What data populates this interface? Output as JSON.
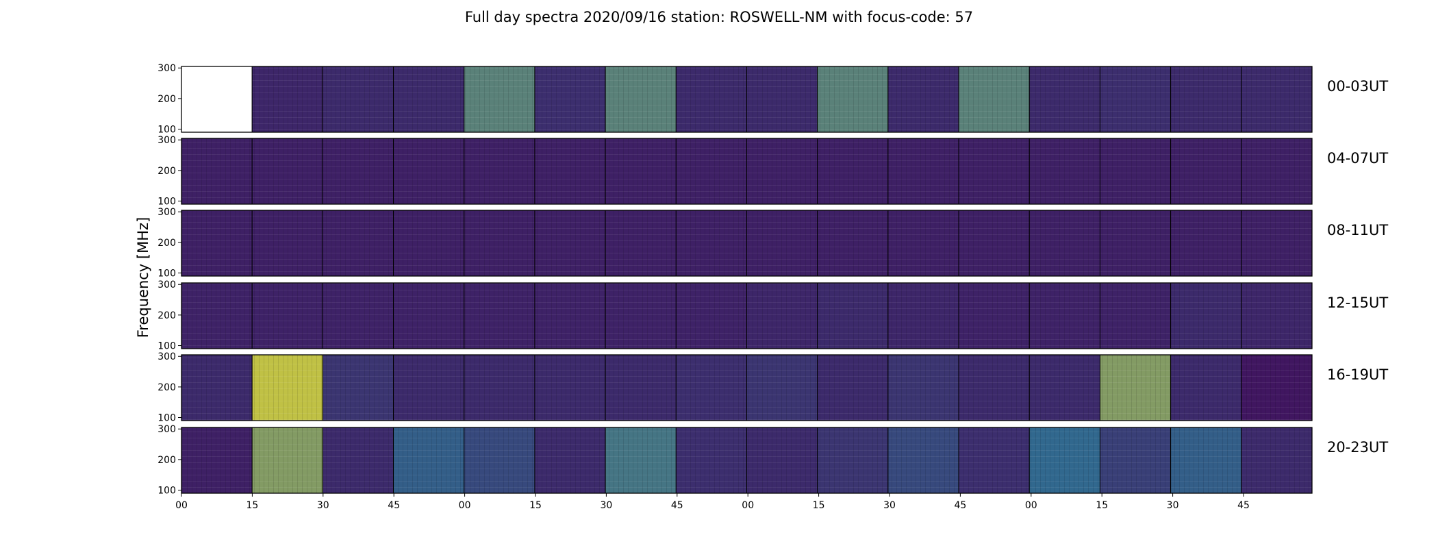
{
  "chart_data": {
    "type": "heatmap",
    "title": "Full day spectra 2020/09/16 station: ROSWELL-NM with focus-code: 57",
    "ylabel": "Frequency [MHz]",
    "ylim": [
      90,
      305
    ],
    "yticks": [
      "300",
      "200",
      "100"
    ],
    "xticks": [
      "00",
      "15",
      "30",
      "45",
      "00",
      "15",
      "30",
      "45",
      "00",
      "15",
      "30",
      "45",
      "00",
      "15",
      "30",
      "45"
    ],
    "rows": [
      {
        "label": "00-03UT",
        "panels": [
          0,
          0.18,
          0.2,
          0.2,
          0.6,
          0.22,
          0.6,
          0.2,
          0.2,
          0.6,
          0.2,
          0.6,
          0.2,
          0.22,
          0.2,
          0.2
        ],
        "missing": [
          0
        ]
      },
      {
        "label": "04-07UT",
        "panels": [
          0.15,
          0.15,
          0.15,
          0.15,
          0.15,
          0.15,
          0.15,
          0.15,
          0.15,
          0.15,
          0.15,
          0.15,
          0.15,
          0.15,
          0.15,
          0.15
        ],
        "missing": []
      },
      {
        "label": "08-11UT",
        "panels": [
          0.15,
          0.15,
          0.15,
          0.15,
          0.15,
          0.15,
          0.15,
          0.15,
          0.15,
          0.15,
          0.15,
          0.15,
          0.15,
          0.15,
          0.15,
          0.15
        ],
        "missing": []
      },
      {
        "label": "12-15UT",
        "panels": [
          0.16,
          0.16,
          0.16,
          0.16,
          0.16,
          0.16,
          0.16,
          0.16,
          0.18,
          0.2,
          0.18,
          0.16,
          0.16,
          0.16,
          0.2,
          0.18
        ],
        "missing": []
      },
      {
        "label": "16-19UT",
        "panels": [
          0.2,
          0.85,
          0.25,
          0.2,
          0.2,
          0.2,
          0.2,
          0.22,
          0.25,
          0.2,
          0.25,
          0.2,
          0.2,
          0.7,
          0.2,
          0.1
        ],
        "missing": []
      },
      {
        "label": "20-23UT",
        "panels": [
          0.15,
          0.7,
          0.2,
          0.45,
          0.35,
          0.2,
          0.55,
          0.22,
          0.2,
          0.25,
          0.35,
          0.22,
          0.5,
          0.3,
          0.45,
          0.2
        ],
        "missing": []
      }
    ],
    "colormap": "viridis",
    "colors": {
      "low": "#440154",
      "mid": "#31688e",
      "high": "#fde725"
    }
  }
}
